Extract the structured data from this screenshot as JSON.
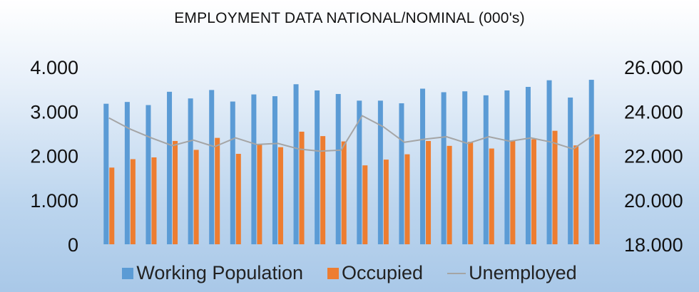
{
  "chart_data": {
    "type": "bar",
    "title": "EMPLOYMENT DATA NATIONAL/NOMINAL (000's)",
    "colors": {
      "working": "#5b9bd5",
      "occupied": "#ed7d31",
      "unemployed": "#a5a5a5"
    },
    "legend_position": "bottom",
    "grid": false,
    "left_axis": {
      "ylim": [
        0,
        4000
      ],
      "ticks": [
        "0",
        "1.000",
        "2.000",
        "3.000",
        "4.000"
      ]
    },
    "right_axis": {
      "ylim": [
        18000,
        26000
      ],
      "ticks": [
        "18.000",
        "20.000",
        "22.000",
        "24.000",
        "26.000"
      ]
    },
    "series": [
      {
        "name": "Working Population",
        "type": "bar",
        "axis": "left",
        "values": [
          3170,
          3210,
          3140,
          3440,
          3290,
          3480,
          3220,
          3380,
          3340,
          3610,
          3470,
          3390,
          3240,
          3240,
          3180,
          3510,
          3430,
          3450,
          3360,
          3470,
          3550,
          3700,
          3310,
          3710
        ]
      },
      {
        "name": "Occupied",
        "type": "bar",
        "axis": "left",
        "values": [
          1730,
          1920,
          1960,
          2330,
          2130,
          2400,
          2040,
          2260,
          2190,
          2540,
          2440,
          2320,
          1780,
          1910,
          2030,
          2330,
          2220,
          2310,
          2160,
          2330,
          2370,
          2560,
          2230,
          2480
        ]
      },
      {
        "name": "Unemployed",
        "type": "line",
        "axis": "right",
        "values": [
          23700,
          23200,
          22800,
          22450,
          22700,
          22400,
          22800,
          22500,
          22550,
          22300,
          22200,
          22250,
          23800,
          23300,
          22600,
          22750,
          22850,
          22550,
          22850,
          22650,
          22800,
          22600,
          22300,
          22950
        ]
      }
    ]
  }
}
